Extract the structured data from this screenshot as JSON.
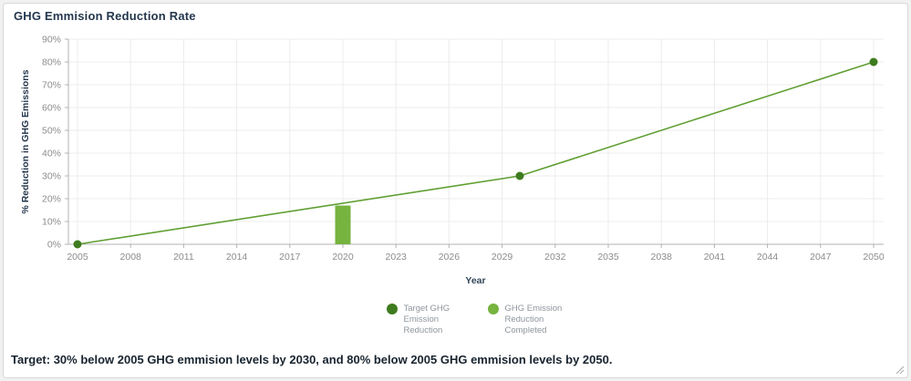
{
  "panel": {
    "footer_text": "Target: 30% below 2005 GHG emmision levels by 2030, and 80% below 2005 GHG emmision levels by 2050."
  },
  "colors": {
    "target_series_marker": "#3E7B1E",
    "target_series_line": "#609F33",
    "completed_series_bar": "#76B33F",
    "title_text": "#24374E",
    "axis_title_text": "#33465A",
    "tick_label_text": "#8C8C8C",
    "legend_text": "#8E959C",
    "grid_line": "#ECECEC",
    "axis_line": "#B3B3B3"
  },
  "chart_data": {
    "type": "line",
    "title": "GHG Emmision Reduction Rate",
    "xlabel": "Year",
    "ylabel": "% Reduction in GHG Emissions",
    "xlim": [
      2005,
      2050
    ],
    "ylim": [
      0,
      90
    ],
    "x_ticks": [
      2005,
      2008,
      2011,
      2014,
      2017,
      2020,
      2023,
      2026,
      2029,
      2032,
      2035,
      2038,
      2041,
      2044,
      2047,
      2050
    ],
    "y_ticks": [
      0,
      10,
      20,
      30,
      40,
      50,
      60,
      70,
      80,
      90
    ],
    "y_tick_suffix": "%",
    "grid": true,
    "legend_position": "bottom",
    "series": [
      {
        "name": "Target GHG Emission Reduction",
        "type": "line",
        "marker_color": "#3E7B1E",
        "line_color": "#609F33",
        "points": [
          {
            "x": 2005,
            "y": 0
          },
          {
            "x": 2030,
            "y": 30
          },
          {
            "x": 2050,
            "y": 80
          }
        ]
      },
      {
        "name": "GHG Emission Reduction Completed",
        "type": "bar",
        "color": "#76B33F",
        "points": [
          {
            "x": 2020,
            "y": 17
          }
        ]
      }
    ]
  }
}
